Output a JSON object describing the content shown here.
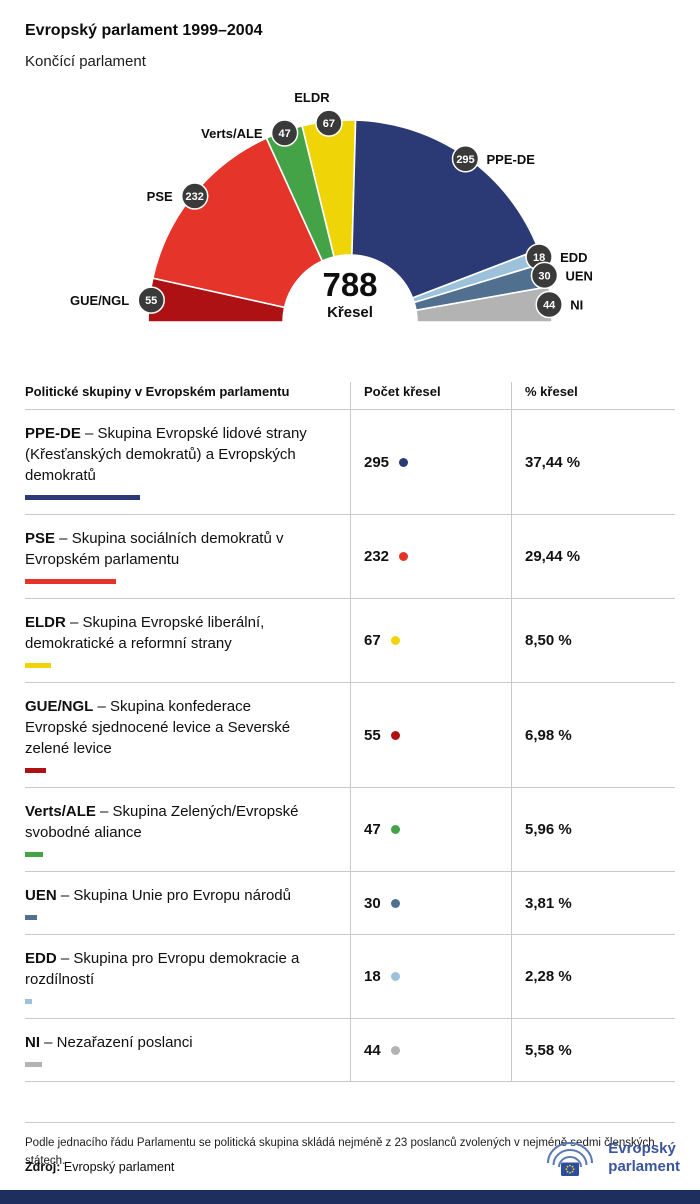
{
  "page": {
    "title": "Evropský parlament 1999–2004",
    "subtitle": "Končící parlament"
  },
  "chart_data": {
    "type": "hemicycle",
    "title": "Evropský parlament 1999–2004",
    "total": 788,
    "total_label": "788",
    "total_sublabel": "Křesel",
    "badge_color": "#3a3a3a",
    "series": [
      {
        "name": "GUE/NGL",
        "seats": 55,
        "color": "#ad1114"
      },
      {
        "name": "PSE",
        "seats": 232,
        "color": "#e5342a"
      },
      {
        "name": "Verts/ALE",
        "seats": 47,
        "color": "#44a346"
      },
      {
        "name": "ELDR",
        "seats": 67,
        "color": "#efd508"
      },
      {
        "name": "PPE-DE",
        "seats": 295,
        "color": "#2b3a74"
      },
      {
        "name": "EDD",
        "seats": 18,
        "color": "#9cc2db"
      },
      {
        "name": "UEN",
        "seats": 30,
        "color": "#51708f"
      },
      {
        "name": "NI",
        "seats": 44,
        "color": "#b3b3b3"
      }
    ]
  },
  "table": {
    "headers": [
      "Politické skupiny v Evropském parlamentu",
      "Počet křesel",
      "% křesel"
    ],
    "rows": [
      {
        "abbr": "PPE-DE",
        "desc": "– Skupina Evropské lidové strany (Křesťanských demokratů) a Evropských demokratů",
        "seats": 295,
        "percent": "37,44 %",
        "color": "#2b3a74"
      },
      {
        "abbr": "PSE",
        "desc": "– Skupina sociálních demokratů v Evropském parlamentu",
        "seats": 232,
        "percent": "29,44 %",
        "color": "#e5342a"
      },
      {
        "abbr": "ELDR",
        "desc": "– Skupina Evropské liberální, demokratické a reformní strany",
        "seats": 67,
        "percent": "8,50 %",
        "color": "#efd508"
      },
      {
        "abbr": "GUE/NGL",
        "desc": "– Skupina konfederace Evropské sjednocené levice a Severské zelené levice",
        "seats": 55,
        "percent": "6,98 %",
        "color": "#ad1114"
      },
      {
        "abbr": "Verts/ALE",
        "desc": "– Skupina Zelených/Evropské svobodné aliance",
        "seats": 47,
        "percent": "5,96 %",
        "color": "#44a346"
      },
      {
        "abbr": "UEN",
        "desc": "– Skupina Unie pro Evropu národů",
        "seats": 30,
        "percent": "3,81 %",
        "color": "#51708f"
      },
      {
        "abbr": "EDD",
        "desc": "– Skupina pro Evropu demokracie a rozdílností",
        "seats": 18,
        "percent": "2,28 %",
        "color": "#9cc2db"
      },
      {
        "abbr": "NI",
        "desc": "– Nezařazení poslanci",
        "seats": 44,
        "percent": "5,58 %",
        "color": "#b3b3b3"
      }
    ]
  },
  "footer": {
    "note": "Podle jednacího řádu Parlamentu se politická skupina skládá nejméně z 23 poslanců zvolených v nejméně sedmi členských státech.",
    "source_label": "Zdroj:",
    "source_value": "Evropský parlament",
    "logo_line1": "Evropský",
    "logo_line2": "parlament"
  }
}
